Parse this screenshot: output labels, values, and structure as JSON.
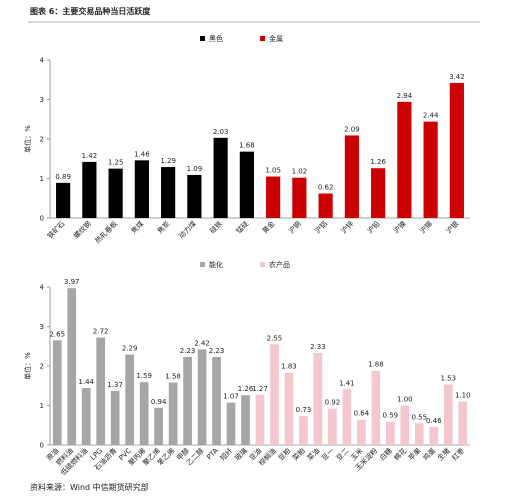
{
  "title": "图表 6：主要交易品种当日活跃度",
  "source": "资料来源：Wind 中信期货研究部",
  "chart_data": [
    {
      "type": "bar",
      "ylabel": "单位：%",
      "ylim": [
        0,
        4
      ],
      "yticks": [
        0,
        1,
        2,
        3,
        4
      ],
      "categories": [
        "铁矿石",
        "螺纹钢",
        "热轧卷板",
        "焦煤",
        "焦炭",
        "动力煤",
        "硅铁",
        "锰硅",
        "黄金",
        "沪铜",
        "沪铝",
        "沪锌",
        "沪铅",
        "沪镍",
        "沪锡",
        "沪银"
      ],
      "series": [
        {
          "name": "黑色",
          "color": "#000000",
          "values": [
            0.89,
            1.42,
            1.25,
            1.46,
            1.29,
            1.09,
            2.03,
            1.68,
            null,
            null,
            null,
            null,
            null,
            null,
            null,
            null
          ]
        },
        {
          "name": "金属",
          "color": "#cc0000",
          "values": [
            null,
            null,
            null,
            null,
            null,
            null,
            null,
            null,
            1.05,
            1.02,
            0.62,
            2.09,
            1.26,
            2.94,
            2.44,
            3.42
          ]
        }
      ]
    },
    {
      "type": "bar",
      "ylabel": "单位：%",
      "ylim": [
        0,
        4
      ],
      "yticks": [
        0,
        1,
        2,
        3,
        4
      ],
      "categories": [
        "原油",
        "燃料油",
        "低硫燃料油",
        "LPG",
        "石油沥青",
        "PVC",
        "聚丙烯",
        "聚乙烯",
        "苯乙烯",
        "甲醇",
        "乙二醇",
        "PTA",
        "短纤",
        "玻璃",
        "豆油",
        "棕榈油",
        "豆粕",
        "菜粕",
        "菜油",
        "豆一",
        "豆二",
        "玉米",
        "玉米淀粉",
        "白糖",
        "棉花",
        "苹果",
        "鸡蛋",
        "生猪",
        "红枣"
      ],
      "series": [
        {
          "name": "能化",
          "color": "#a6a6a6",
          "values": [
            2.65,
            3.97,
            1.44,
            2.72,
            1.37,
            2.29,
            1.59,
            0.94,
            1.58,
            2.23,
            2.42,
            2.23,
            1.07,
            1.26,
            null,
            null,
            null,
            null,
            null,
            null,
            null,
            null,
            null,
            null,
            null,
            null,
            null,
            null,
            null
          ]
        },
        {
          "name": "农产品",
          "color": "#f4c7cc",
          "values": [
            null,
            null,
            null,
            null,
            null,
            null,
            null,
            null,
            null,
            null,
            null,
            null,
            null,
            null,
            1.27,
            2.55,
            1.83,
            0.73,
            2.33,
            0.92,
            1.41,
            0.64,
            1.88,
            0.59,
            1.0,
            0.55,
            0.46,
            1.53,
            1.1
          ],
          "value_labels": [
            null,
            null,
            null,
            null,
            null,
            null,
            null,
            null,
            null,
            null,
            null,
            null,
            null,
            null,
            "1.27",
            "2.55",
            "1.83",
            "0.73",
            "2.33",
            "0.92",
            "1.41",
            "0.64",
            "1.88",
            "0.59",
            "1.00",
            "0.55",
            "0.46",
            "1.53",
            "1.10"
          ]
        }
      ]
    }
  ]
}
